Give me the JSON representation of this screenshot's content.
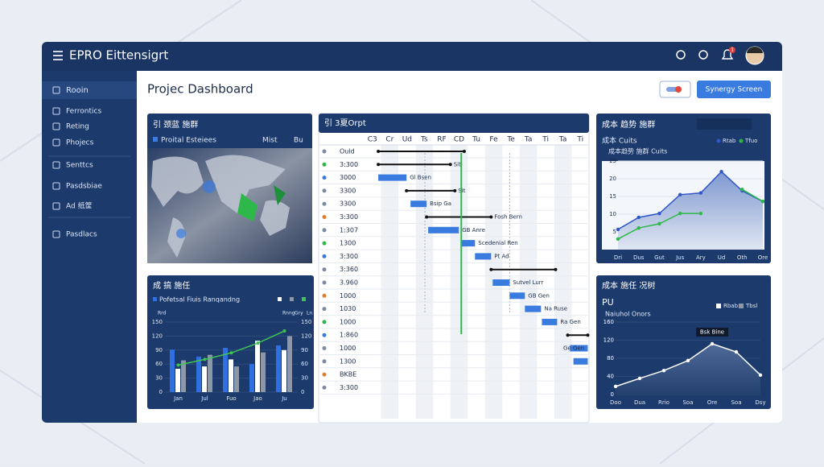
{
  "app": {
    "title": "EPRO Eittensigrt",
    "badge": "1"
  },
  "sidebar": [
    "Rooin",
    "Ferrontics",
    "Reting",
    "Phojecs",
    "Senttcs",
    "Pasdsbiae",
    "Ad 纸筐",
    "Pasdlacs"
  ],
  "header": {
    "title": "Projec Dashboard",
    "button": "Synergy Screen"
  },
  "map_panel": {
    "title": "引 颈蓝 施群",
    "legend": [
      "Proital Esteiees",
      "Mist",
      "Bu"
    ]
  },
  "gantt": {
    "title": "引 3夏Orpt",
    "xlim": [
      0,
      13
    ],
    "columns": [
      "C3",
      "Cr",
      "Ud",
      "Ts",
      "RF",
      "CD",
      "Tu",
      "Fe",
      "Te",
      "Ta",
      "Ti",
      "Ta",
      "Ti"
    ],
    "rows": [
      "Ould",
      "3:300",
      "3000",
      "3300",
      "3300",
      "3:300",
      "1:307",
      "1300",
      "3:300",
      "3:360",
      "3.960",
      "1000",
      "1030",
      "1000",
      "1:860",
      "1000",
      "1300",
      "BKBE",
      "3:300"
    ],
    "tasks": [
      {
        "kind": "line",
        "start": 0.84,
        "end": 5.8
      },
      {
        "kind": "line",
        "start": 0.84,
        "end": 5.0,
        "note": "Sit"
      },
      {
        "kind": "bar",
        "start": 0.84,
        "end": 2.47,
        "note": "Gl Bsen"
      },
      {
        "kind": "line",
        "start": 2.47,
        "end": 5.26,
        "note": "Sit"
      },
      {
        "kind": "bar",
        "start": 2.7,
        "end": 3.63,
        "note": "Bsip Ga"
      },
      {
        "kind": "line",
        "start": 3.63,
        "end": 7.35,
        "note": "Fosh Bern"
      },
      {
        "kind": "bar",
        "start": 3.72,
        "end": 5.49,
        "note": "GB Anre"
      },
      {
        "kind": "bar",
        "start": 5.63,
        "end": 6.42,
        "note": "Scedenial Ren"
      },
      {
        "kind": "bar",
        "start": 6.42,
        "end": 7.35,
        "note": "Pt Ad"
      },
      {
        "kind": "line",
        "start": 7.35,
        "end": 11.07
      },
      {
        "kind": "bar",
        "start": 7.44,
        "end": 8.42,
        "note": "Sutvel Lurr"
      },
      {
        "kind": "bar",
        "start": 8.42,
        "end": 9.3,
        "note": "GB Gen"
      },
      {
        "kind": "bar",
        "start": 9.3,
        "end": 10.23,
        "note": "Na Ruse"
      },
      {
        "kind": "bar",
        "start": 10.28,
        "end": 11.16,
        "note": "Ra Gen"
      },
      {
        "kind": "line",
        "start": 11.77,
        "end": 12.93
      },
      {
        "kind": "bar",
        "start": 11.9,
        "end": 12.93,
        "note": "Ge Gen"
      },
      {
        "kind": "bar",
        "start": 12.1,
        "end": 12.93
      },
      null,
      null
    ],
    "today": 5.63,
    "markers": [
      3.53,
      8.42
    ]
  },
  "trend_chart": {
    "type": "line",
    "title": "成本 趋势 施群",
    "subtitle": "成本 Cuits",
    "legend_text": "成本趋势 施群 Cuits",
    "ylim": [
      0,
      25
    ],
    "yticks": [
      5,
      10,
      15,
      20,
      25
    ],
    "categories": [
      "Dri",
      "Dus",
      "Gut",
      "Jus",
      "Ary",
      "Ud",
      "Oth",
      "Ore"
    ],
    "series": [
      {
        "name": "Rtab",
        "color": "#2f57c8",
        "values": [
          5.7,
          9.1,
          10.2,
          15.5,
          16,
          22,
          16.6,
          13.6
        ]
      },
      {
        "name": "Tfuo",
        "color": "#2fb84a",
        "values": [
          3,
          6.1,
          7.3,
          10.2,
          10.2,
          null,
          17,
          13.6
        ]
      }
    ]
  },
  "bar_chart": {
    "type": "bar",
    "title": "成 搞 施任",
    "legend_text": "Pofetsal Fiuis Ranqandng",
    "ylim": [
      0,
      150
    ],
    "yticks": [
      0,
      30,
      60,
      90,
      120,
      150
    ],
    "categories": [
      "Jan",
      "Jul",
      "Fuo",
      "Jao",
      "Ju"
    ],
    "series": [
      {
        "name": "Rrd",
        "color": "#2f6fe0",
        "values": [
          91,
          76,
          95,
          60,
          100
        ]
      },
      {
        "name": "Rnng",
        "color": "#ffffff",
        "values": [
          50,
          55,
          70,
          110,
          90
        ]
      },
      {
        "name": "Gry",
        "color": "#8d97a8",
        "values": [
          68,
          80,
          55,
          85,
          120
        ]
      },
      {
        "name": "Ln",
        "color": "#3fc454",
        "values": [
          58,
          70,
          84,
          105,
          131
        ]
      }
    ]
  },
  "line_chart": {
    "type": "line",
    "title": "成本 施任 况树",
    "subtitle": "PU",
    "caption": "Naiuhol Onors",
    "annotation": "Bsk Bine",
    "ylim": [
      0,
      160
    ],
    "yticks": [
      0,
      40,
      80,
      120,
      160
    ],
    "categories": [
      "Doo",
      "Dua",
      "Rrio",
      "Soa",
      "Ore",
      "Soa",
      "Dsy"
    ],
    "series": [
      {
        "name": "Rbab",
        "color": "#ffffff",
        "values": [
          17.8,
          35.6,
          53,
          75,
          112,
          94,
          43
        ]
      },
      {
        "name": "Tbsl",
        "color": "#8d97a8",
        "values": []
      }
    ]
  }
}
